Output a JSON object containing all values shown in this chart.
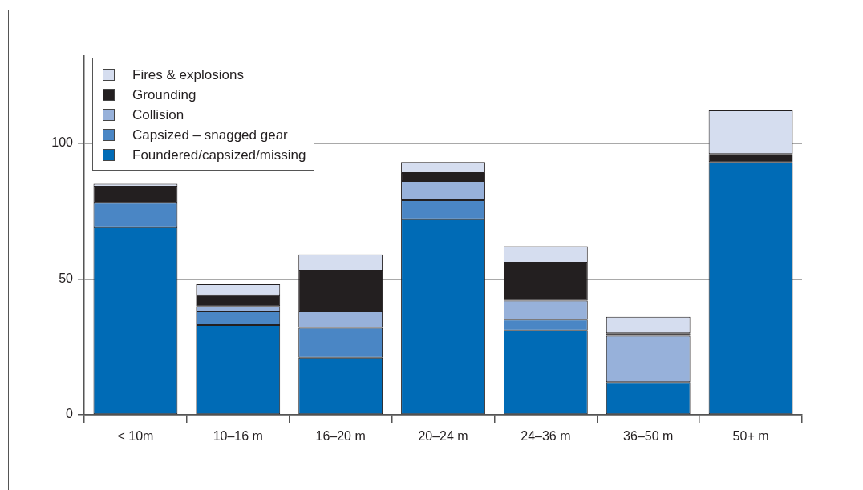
{
  "chart_data": {
    "type": "bar",
    "stacked": true,
    "categories": [
      "< 10m",
      "10–16 m",
      "16–20 m",
      "20–24 m",
      "24–36 m",
      "36–50 m",
      "50+ m"
    ],
    "series": [
      {
        "name": "Foundered/capsized/missing",
        "color": "#006bb6",
        "values": [
          69,
          33,
          21,
          72,
          31,
          12,
          93
        ]
      },
      {
        "name": "Capsized – snagged gear",
        "color": "#4a86c5",
        "values": [
          9,
          5,
          11,
          7,
          4,
          0,
          0
        ]
      },
      {
        "name": "Collision",
        "color": "#97b1da",
        "values": [
          0,
          2,
          6,
          7,
          7,
          17,
          0
        ]
      },
      {
        "name": "Grounding",
        "color": "#231f20",
        "values": [
          6,
          4,
          15,
          3,
          14,
          1,
          3
        ]
      },
      {
        "name": "Fires & explosions",
        "color": "#d5ddef",
        "values": [
          1,
          4,
          6,
          4,
          6,
          6,
          16
        ]
      }
    ],
    "ylim": [
      0,
      132
    ],
    "yticks": [
      0,
      50,
      100
    ],
    "grid": "y",
    "legend": "top left"
  }
}
